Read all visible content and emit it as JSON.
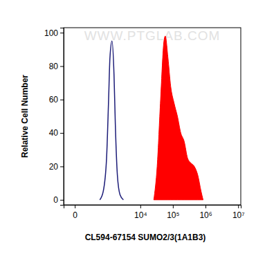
{
  "chart_data": {
    "type": "line",
    "x_label": "CL594-67154 SUMO2/3(1A1B3)",
    "y_label": "Relative Cell Number",
    "annotations": [
      "WWW.PTGLAB.COM"
    ],
    "log": "x",
    "xlim": [
      -120,
      12000000
    ],
    "ylim": [
      -3,
      103
    ],
    "xticks": [
      0,
      {
        "value": 10000,
        "label": "10⁴"
      },
      {
        "value": 100000,
        "label": "10⁵"
      },
      {
        "value": 1000000,
        "label": "10⁶"
      },
      {
        "value": 10000000,
        "label": "10⁷"
      }
    ],
    "yticks": [
      0,
      20,
      40,
      60,
      80,
      100
    ],
    "series": [
      {
        "color": "#1c1c78",
        "type": "line",
        "x": [
          481,
          639,
          836,
          980,
          1087,
          1270,
          1480,
          1636,
          1900,
          2320,
          2970
        ],
        "values": [
          0,
          5,
          25,
          60,
          85,
          95,
          75,
          45,
          15,
          3,
          0
        ]
      },
      {
        "color": "#ff0000",
        "type": "area",
        "x": [
          26000,
          33000,
          42000,
          53300,
          58600,
          70800,
          85700,
          108700,
          138000,
          175000,
          222000,
          282000,
          358000,
          454000,
          576000,
          733000,
          843000
        ],
        "values": [
          0,
          20,
          60,
          95,
          98,
          85,
          68,
          58,
          50,
          40,
          35,
          25,
          22,
          20,
          15,
          5,
          0
        ]
      }
    ]
  }
}
